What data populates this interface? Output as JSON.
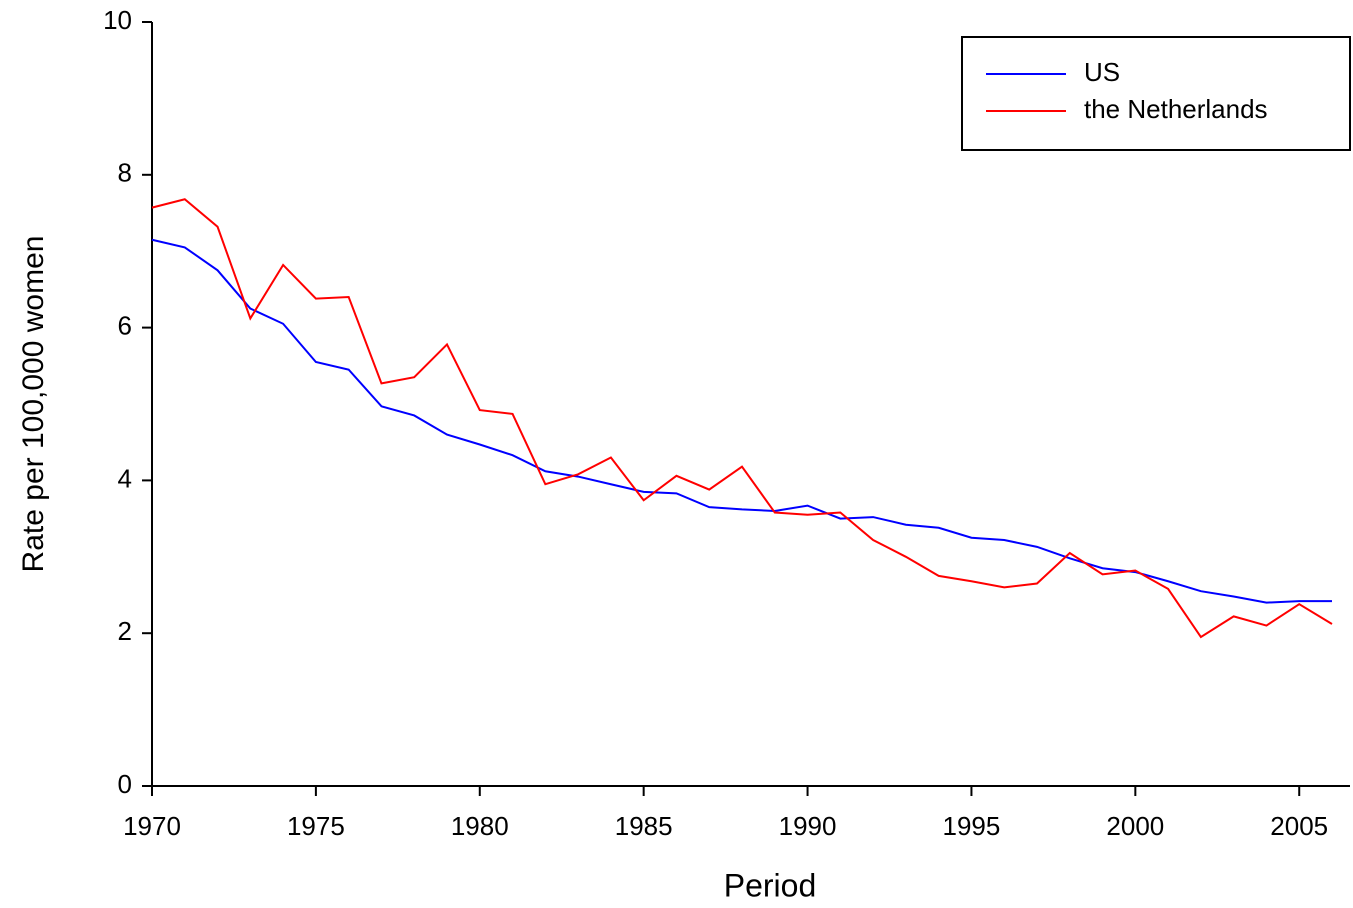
{
  "chart_data": {
    "type": "line",
    "x_label": "Period",
    "y_label": "Rate per 100,000 women",
    "x": [
      1970,
      1971,
      1972,
      1973,
      1974,
      1975,
      1976,
      1977,
      1978,
      1979,
      1980,
      1981,
      1982,
      1983,
      1984,
      1985,
      1986,
      1987,
      1988,
      1989,
      1990,
      1991,
      1992,
      1993,
      1994,
      1995,
      1996,
      1997,
      1998,
      1999,
      2000,
      2001,
      2002,
      2003,
      2004,
      2005,
      2006
    ],
    "series": [
      {
        "name": "US",
        "color": "#0000ff",
        "values": [
          7.15,
          7.05,
          6.75,
          6.25,
          6.05,
          5.55,
          5.45,
          4.97,
          4.85,
          4.6,
          4.47,
          4.33,
          4.12,
          4.05,
          3.95,
          3.85,
          3.83,
          3.65,
          3.62,
          3.6,
          3.67,
          3.5,
          3.52,
          3.42,
          3.38,
          3.25,
          3.22,
          3.13,
          2.98,
          2.85,
          2.8,
          2.68,
          2.55,
          2.48,
          2.4,
          2.42,
          2.42
        ]
      },
      {
        "name": "the Netherlands",
        "color": "#ff0000",
        "values": [
          7.57,
          7.68,
          7.32,
          6.12,
          6.82,
          6.38,
          6.4,
          5.27,
          5.35,
          5.78,
          4.92,
          4.87,
          3.95,
          4.08,
          4.3,
          3.74,
          4.06,
          3.88,
          4.18,
          3.58,
          3.55,
          3.58,
          3.22,
          3.0,
          2.75,
          2.68,
          2.6,
          2.65,
          3.05,
          2.77,
          2.82,
          2.58,
          1.95,
          2.22,
          2.1,
          2.38,
          2.12
        ]
      }
    ],
    "xlim": [
      1970,
      2006
    ],
    "xticks": [
      1970,
      1975,
      1980,
      1985,
      1990,
      1995,
      2000,
      2005
    ],
    "ylim": [
      0,
      10
    ],
    "yticks": [
      0,
      2,
      4,
      6,
      8,
      10
    ],
    "legend": "upper right"
  }
}
